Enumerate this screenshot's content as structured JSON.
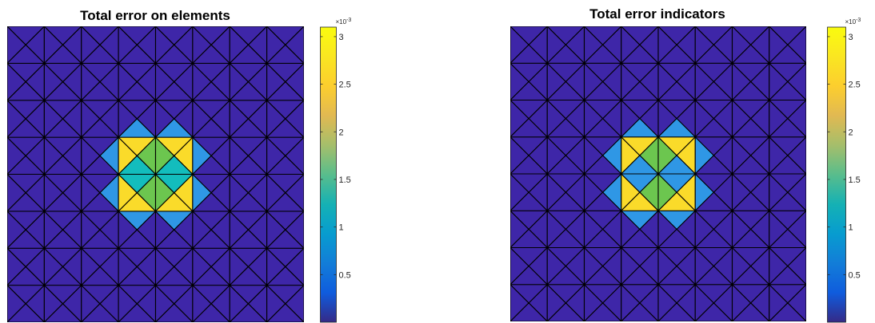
{
  "colors": {
    "background": "#ffffff",
    "edge": "#000000",
    "levels": {
      "0": "#3e26a8",
      "1": "#2f97e5",
      "2": "#13bdbd",
      "3": "#6cc64f",
      "4": "#fadb2a"
    }
  },
  "colormap": "parula",
  "chart_data": [
    {
      "type": "heatmap",
      "title": "Total error on elements",
      "mesh": "8x8 grid of squares, each split into 4 triangles (left, right, bottom, top) by both diagonals; domain [0,1]x[0,1], y upward",
      "triangle_order": [
        "left",
        "right",
        "bottom",
        "top"
      ],
      "color_axis": {
        "min": 0.0,
        "max": 3.1,
        "exponent_label": "×10",
        "exponent": "-3",
        "ticks": [
          0.5,
          1,
          1.5,
          2,
          2.5,
          3
        ],
        "tick_labels": [
          "0.5",
          "1",
          "1.5",
          "2",
          "2.5",
          "3"
        ]
      },
      "level_values": {
        "0": 0.05,
        "1": 1.1,
        "2": 1.5,
        "3": 2.0,
        "4": 3.0
      },
      "cells": [
        {
          "col": 2,
          "row": 4,
          "tri": "right",
          "level": 1
        },
        {
          "col": 2,
          "row": 3,
          "tri": "right",
          "level": 1
        },
        {
          "col": 5,
          "row": 4,
          "tri": "left",
          "level": 1
        },
        {
          "col": 5,
          "row": 3,
          "tri": "left",
          "level": 1
        },
        {
          "col": 3,
          "row": 5,
          "tri": "bottom",
          "level": 1
        },
        {
          "col": 4,
          "row": 5,
          "tri": "bottom",
          "level": 1
        },
        {
          "col": 3,
          "row": 2,
          "tri": "top",
          "level": 1
        },
        {
          "col": 4,
          "row": 2,
          "tri": "top",
          "level": 1
        },
        {
          "col": 3,
          "row": 4,
          "tri": "left",
          "level": 4
        },
        {
          "col": 3,
          "row": 4,
          "tri": "top",
          "level": 4
        },
        {
          "col": 3,
          "row": 4,
          "tri": "right",
          "level": 3
        },
        {
          "col": 3,
          "row": 4,
          "tri": "bottom",
          "level": 2
        },
        {
          "col": 4,
          "row": 4,
          "tri": "right",
          "level": 4
        },
        {
          "col": 4,
          "row": 4,
          "tri": "top",
          "level": 4
        },
        {
          "col": 4,
          "row": 4,
          "tri": "left",
          "level": 3
        },
        {
          "col": 4,
          "row": 4,
          "tri": "bottom",
          "level": 2
        },
        {
          "col": 3,
          "row": 3,
          "tri": "left",
          "level": 4
        },
        {
          "col": 3,
          "row": 3,
          "tri": "bottom",
          "level": 4
        },
        {
          "col": 3,
          "row": 3,
          "tri": "right",
          "level": 3
        },
        {
          "col": 3,
          "row": 3,
          "tri": "top",
          "level": 2
        },
        {
          "col": 4,
          "row": 3,
          "tri": "right",
          "level": 4
        },
        {
          "col": 4,
          "row": 3,
          "tri": "bottom",
          "level": 4
        },
        {
          "col": 4,
          "row": 3,
          "tri": "left",
          "level": 3
        },
        {
          "col": 4,
          "row": 3,
          "tri": "top",
          "level": 2
        }
      ]
    },
    {
      "type": "heatmap",
      "title": "Total error indicators",
      "mesh": "8x8 grid of squares, each split into 4 triangles (left, right, bottom, top) by both diagonals; domain [0,1]x[0,1], y upward",
      "triangle_order": [
        "left",
        "right",
        "bottom",
        "top"
      ],
      "color_axis": {
        "min": 0.0,
        "max": 3.1,
        "exponent_label": "×10",
        "exponent": "-3",
        "ticks": [
          0.5,
          1,
          1.5,
          2,
          2.5,
          3
        ],
        "tick_labels": [
          "0.5",
          "1",
          "1.5",
          "2",
          "2.5",
          "3"
        ]
      },
      "level_values": {
        "0": 0.05,
        "1": 1.1,
        "2": 1.5,
        "3": 2.0,
        "4": 3.0
      },
      "cells": [
        {
          "col": 2,
          "row": 4,
          "tri": "right",
          "level": 1
        },
        {
          "col": 2,
          "row": 3,
          "tri": "right",
          "level": 1
        },
        {
          "col": 5,
          "row": 4,
          "tri": "left",
          "level": 1
        },
        {
          "col": 5,
          "row": 3,
          "tri": "left",
          "level": 1
        },
        {
          "col": 3,
          "row": 5,
          "tri": "bottom",
          "level": 1
        },
        {
          "col": 4,
          "row": 5,
          "tri": "bottom",
          "level": 1
        },
        {
          "col": 3,
          "row": 2,
          "tri": "top",
          "level": 1
        },
        {
          "col": 4,
          "row": 2,
          "tri": "top",
          "level": 1
        },
        {
          "col": 3,
          "row": 4,
          "tri": "left",
          "level": 4
        },
        {
          "col": 3,
          "row": 4,
          "tri": "top",
          "level": 4
        },
        {
          "col": 3,
          "row": 4,
          "tri": "right",
          "level": 3
        },
        {
          "col": 3,
          "row": 4,
          "tri": "bottom",
          "level": 1
        },
        {
          "col": 4,
          "row": 4,
          "tri": "right",
          "level": 4
        },
        {
          "col": 4,
          "row": 4,
          "tri": "top",
          "level": 4
        },
        {
          "col": 4,
          "row": 4,
          "tri": "left",
          "level": 3
        },
        {
          "col": 4,
          "row": 4,
          "tri": "bottom",
          "level": 1
        },
        {
          "col": 3,
          "row": 3,
          "tri": "left",
          "level": 4
        },
        {
          "col": 3,
          "row": 3,
          "tri": "bottom",
          "level": 4
        },
        {
          "col": 3,
          "row": 3,
          "tri": "right",
          "level": 3
        },
        {
          "col": 3,
          "row": 3,
          "tri": "top",
          "level": 1
        },
        {
          "col": 4,
          "row": 3,
          "tri": "right",
          "level": 4
        },
        {
          "col": 4,
          "row": 3,
          "tri": "bottom",
          "level": 4
        },
        {
          "col": 4,
          "row": 3,
          "tri": "left",
          "level": 3
        },
        {
          "col": 4,
          "row": 3,
          "tri": "top",
          "level": 1
        }
      ]
    }
  ]
}
